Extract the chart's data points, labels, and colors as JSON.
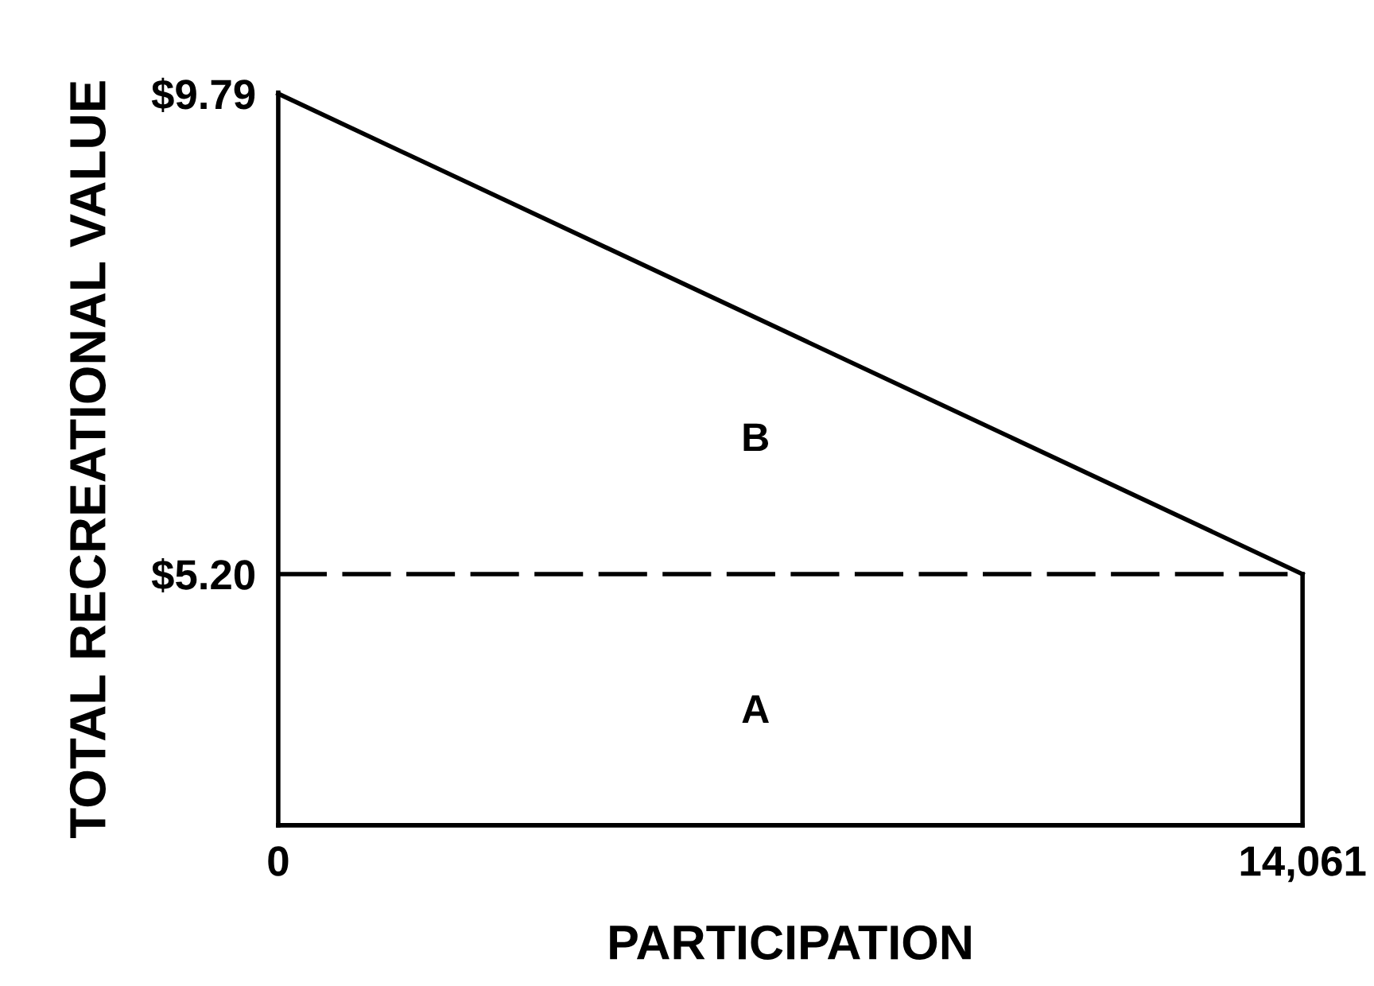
{
  "chart_data": {
    "type": "line",
    "xlabel": "PARTICIPATION",
    "ylabel": "TOTAL RECREATIONAL VALUE",
    "x": [
      0,
      14061
    ],
    "series": [
      {
        "color": "#000000",
        "values": [
          9.79,
          5.2
        ]
      }
    ],
    "xlim": [
      0,
      14061
    ],
    "xticks": [
      0,
      {
        "value": 14061,
        "label": "14,061"
      }
    ],
    "ylim": [
      2.8,
      9.8
    ],
    "yticks": [
      {
        "value": 5.2,
        "label": "$5.20"
      },
      {
        "value": 9.79,
        "label": "$9.79"
      }
    ],
    "ref_lines": [
      {
        "axis": "y",
        "value": 5.2,
        "color": "#000000",
        "line_style": "dashed"
      }
    ],
    "annotations": [
      "B",
      "A"
    ],
    "marker": "none",
    "line_style": "solid",
    "grid": false,
    "legend": false
  }
}
